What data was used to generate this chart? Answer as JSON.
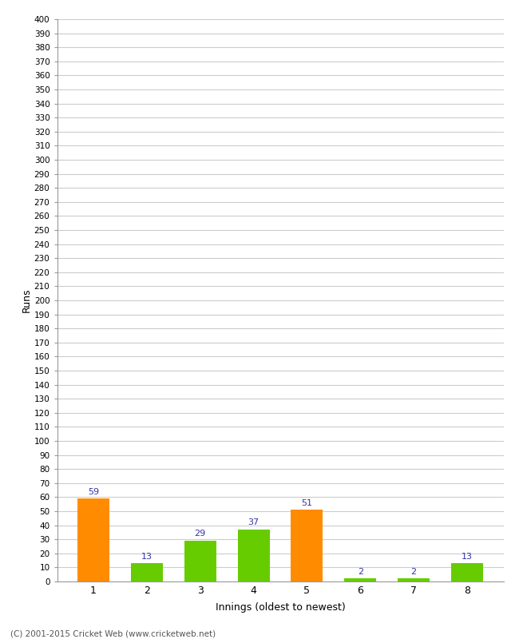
{
  "xlabel": "Innings (oldest to newest)",
  "ylabel": "Runs",
  "categories": [
    "1",
    "2",
    "3",
    "4",
    "5",
    "6",
    "7",
    "8"
  ],
  "values": [
    59,
    13,
    29,
    37,
    51,
    2,
    2,
    13
  ],
  "colors": [
    "#ff8c00",
    "#66cc00",
    "#66cc00",
    "#66cc00",
    "#ff8c00",
    "#66cc00",
    "#66cc00",
    "#66cc00"
  ],
  "ylim": [
    0,
    400
  ],
  "ytick_step": 10,
  "label_color": "#3333aa",
  "background_color": "#ffffff",
  "grid_color": "#cccccc",
  "footer": "(C) 2001-2015 Cricket Web (www.cricketweb.net)",
  "bar_width": 0.6
}
